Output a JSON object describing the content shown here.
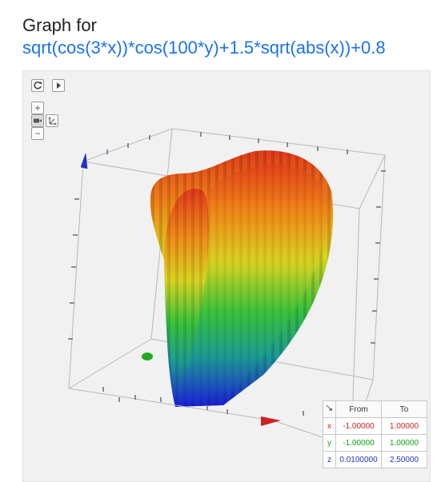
{
  "title": {
    "prefix": "Graph for ",
    "function": "sqrt(cos(3*x))*cos(100*y)+1.5*sqrt(abs(x))+0.8"
  },
  "controls": {
    "reset_icon": "refresh-icon",
    "play_icon": "play-icon",
    "zoom_in": "+",
    "zoom_out": "−",
    "camera_icon": "camera-icon",
    "axes_icon": "axes-move-icon"
  },
  "colors": {
    "x_axis": "#cc2222",
    "y_axis": "#22aa22",
    "z_axis": "#2233cc",
    "link": "#1a73e8"
  },
  "range_table": {
    "corner_icon": "corner-arrow-icon",
    "from_header": "From",
    "to_header": "To",
    "rows": [
      {
        "axis": "x",
        "from": "-1.00000",
        "to": "1.00000"
      },
      {
        "axis": "y",
        "from": "-1.00000",
        "to": "1.00000"
      },
      {
        "axis": "z",
        "from": "0.0100000",
        "to": "2.50000"
      }
    ]
  }
}
